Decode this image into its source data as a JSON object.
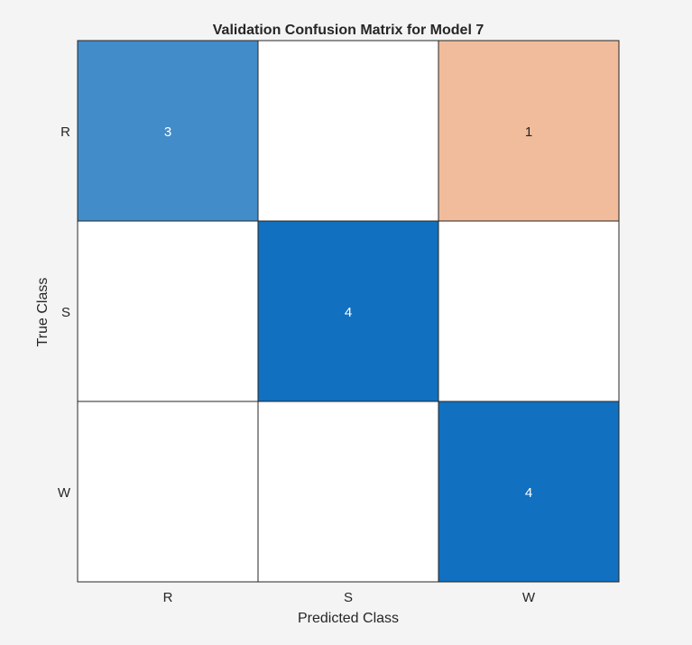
{
  "chart_data": {
    "type": "heatmap",
    "title": "Validation Confusion Matrix for Model 7",
    "xlabel": "Predicted Class",
    "ylabel": "True Class",
    "x_categories": [
      "R",
      "S",
      "W"
    ],
    "y_categories": [
      "R",
      "S",
      "W"
    ],
    "values": [
      [
        3,
        0,
        1
      ],
      [
        0,
        4,
        0
      ],
      [
        0,
        0,
        4
      ]
    ],
    "colors": {
      "diagonal_max": "#1170bf",
      "diagonal_low": "#428cca",
      "off_diagonal": "#f0bc9b",
      "empty": "#ffffff",
      "background": "#f4f4f4",
      "text_dark": "#262626",
      "text_light": "#ffffff"
    }
  }
}
